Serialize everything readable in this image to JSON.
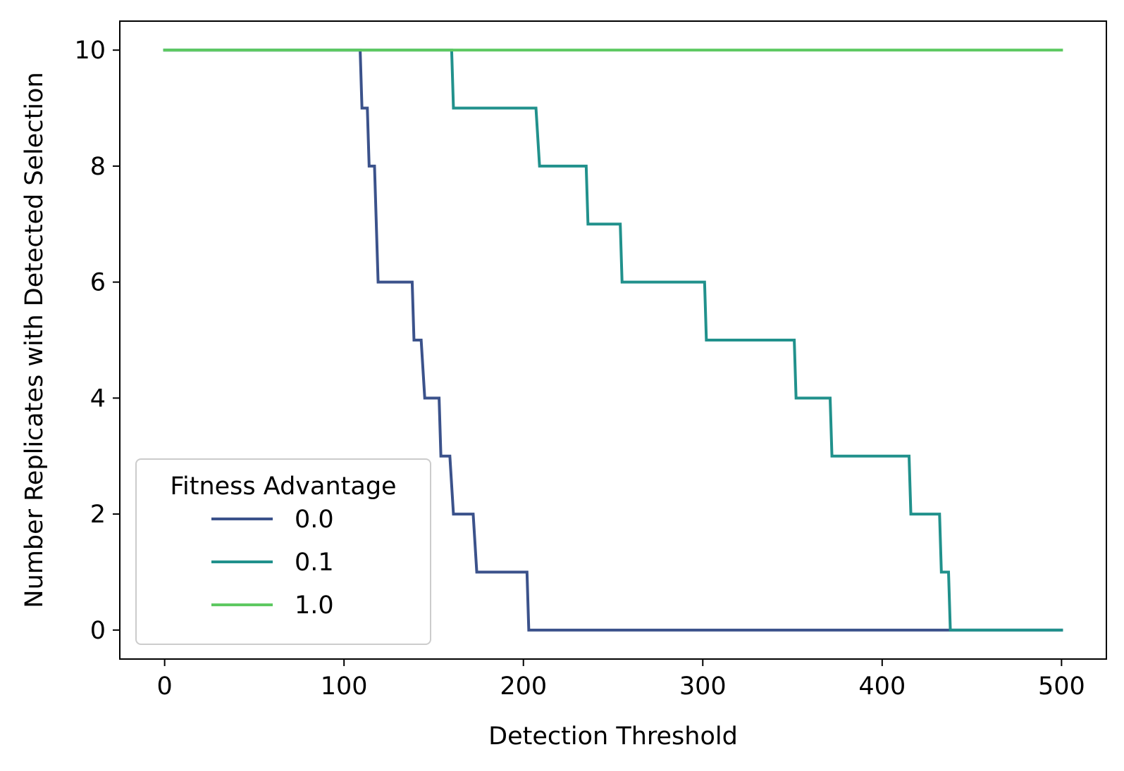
{
  "chart_data": {
    "type": "line",
    "title": "",
    "xlabel": "Detection Threshold",
    "ylabel": "Number Replicates with Detected Selection",
    "xlim": [
      -25,
      525
    ],
    "ylim": [
      -0.5,
      10.5
    ],
    "xticks": [
      0,
      100,
      200,
      300,
      400,
      500
    ],
    "yticks": [
      0,
      2,
      4,
      6,
      8,
      10
    ],
    "xtick_labels": [
      "0",
      "100",
      "200",
      "300",
      "400",
      "500"
    ],
    "ytick_labels": [
      "0",
      "2",
      "4",
      "6",
      "8",
      "10"
    ],
    "grid": false,
    "legend": {
      "title": "Fitness Advantage",
      "placement": "lower-left"
    },
    "series": [
      {
        "name": "0.0",
        "color": "#3b528b",
        "points": [
          [
            0,
            10
          ],
          [
            109,
            10
          ],
          [
            110,
            9
          ],
          [
            113,
            9
          ],
          [
            114,
            8
          ],
          [
            117,
            8
          ],
          [
            119,
            6
          ],
          [
            138,
            6
          ],
          [
            139,
            5
          ],
          [
            143,
            5
          ],
          [
            145,
            4
          ],
          [
            153,
            4
          ],
          [
            154,
            3
          ],
          [
            159,
            3
          ],
          [
            161,
            2
          ],
          [
            172,
            2
          ],
          [
            174,
            1
          ],
          [
            202,
            1
          ],
          [
            203,
            0
          ],
          [
            500,
            0
          ]
        ]
      },
      {
        "name": "0.1",
        "color": "#21918c",
        "points": [
          [
            0,
            10
          ],
          [
            160,
            10
          ],
          [
            161,
            9
          ],
          [
            207,
            9
          ],
          [
            209,
            8
          ],
          [
            235,
            8
          ],
          [
            236,
            7
          ],
          [
            254,
            7
          ],
          [
            255,
            6
          ],
          [
            301,
            6
          ],
          [
            302,
            5
          ],
          [
            351,
            5
          ],
          [
            352,
            4
          ],
          [
            371,
            4
          ],
          [
            372,
            3
          ],
          [
            415,
            3
          ],
          [
            416,
            2
          ],
          [
            432,
            2
          ],
          [
            433,
            1
          ],
          [
            437,
            1
          ],
          [
            438,
            0
          ],
          [
            500,
            0
          ]
        ]
      },
      {
        "name": "1.0",
        "color": "#5ec962",
        "points": [
          [
            0,
            10
          ],
          [
            500,
            10
          ]
        ]
      }
    ]
  }
}
